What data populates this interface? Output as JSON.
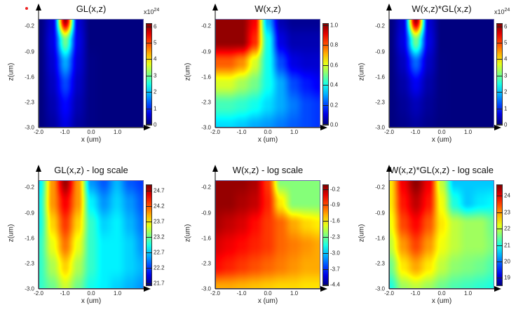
{
  "chart_data": [
    {
      "type": "heatmap",
      "title": "GL(x,z)",
      "xlabel": "x (um)",
      "ylabel": "z(um)",
      "xlim": [
        -2,
        2
      ],
      "ylim": [
        -3,
        0
      ],
      "xticks": [
        "-2.0",
        "-1.0",
        "0.0",
        "1.0"
      ],
      "yticks": [
        "-0.2",
        "-0.9",
        "-1.6",
        "-2.3",
        "-3.0"
      ],
      "multiplier": "x10",
      "multiplier_exp": "24",
      "clim": [
        0,
        6.2
      ],
      "cbticks": [
        "6",
        "5",
        "4",
        "3",
        "2",
        "1",
        "0"
      ],
      "grid_x": [
        -2,
        -1.5,
        -1,
        -0.5,
        0,
        0.5,
        1,
        1.5,
        2
      ],
      "grid_z": [
        0,
        -0.6,
        -1.2,
        -1.8,
        -2.4,
        -3.0
      ],
      "values": [
        [
          0,
          0.5,
          6,
          0.5,
          0,
          0,
          0,
          0,
          0
        ],
        [
          0,
          0.6,
          3,
          0.6,
          0,
          0,
          0,
          0,
          0
        ],
        [
          0,
          0.5,
          1.8,
          0.5,
          0.05,
          0,
          0,
          0,
          0
        ],
        [
          0,
          0.4,
          1.2,
          0.4,
          0.05,
          0,
          0,
          0,
          0
        ],
        [
          0,
          0.3,
          0.8,
          0.3,
          0.05,
          0,
          0,
          0,
          0
        ],
        [
          0,
          0.2,
          0.6,
          0.2,
          0.05,
          0,
          0,
          0,
          0
        ]
      ]
    },
    {
      "type": "heatmap",
      "title": "W(x,z)",
      "xlabel": "x (um)",
      "ylabel": "z(um)",
      "xlim": [
        -2,
        2
      ],
      "ylim": [
        -3,
        0
      ],
      "xticks": [
        "-2.0",
        "-1.0",
        "0.0",
        "1.0"
      ],
      "yticks": [
        "-0.2",
        "-0.9",
        "-1.6",
        "-2.3",
        "-3.0"
      ],
      "clim": [
        0,
        1.02
      ],
      "cbticks": [
        "1.0",
        "0.8",
        "0.6",
        "0.4",
        "0.2",
        "0.0"
      ],
      "grid_x": [
        -2,
        -1.5,
        -1,
        -0.5,
        0,
        0.5,
        1,
        1.5,
        2
      ],
      "grid_z": [
        0,
        -0.6,
        -1.2,
        -1.8,
        -2.4,
        -3.0
      ],
      "values": [
        [
          1,
          1,
          1,
          0.9,
          0.3,
          0.05,
          0.02,
          0.02,
          0.02
        ],
        [
          1,
          1,
          1,
          0.85,
          0.4,
          0.1,
          0.05,
          0.05,
          0.05
        ],
        [
          0.8,
          0.8,
          0.75,
          0.6,
          0.4,
          0.2,
          0.1,
          0.08,
          0.08
        ],
        [
          0.6,
          0.6,
          0.55,
          0.5,
          0.4,
          0.3,
          0.2,
          0.15,
          0.12
        ],
        [
          0.45,
          0.45,
          0.43,
          0.4,
          0.35,
          0.3,
          0.25,
          0.2,
          0.18
        ],
        [
          0.35,
          0.35,
          0.33,
          0.3,
          0.28,
          0.25,
          0.22,
          0.2,
          0.18
        ]
      ]
    },
    {
      "type": "heatmap",
      "title": "W(x,z)*GL(x,z)",
      "xlabel": "x (um)",
      "ylabel": "z(um)",
      "xlim": [
        -2,
        2
      ],
      "ylim": [
        -3,
        0
      ],
      "xticks": [
        "-2.0",
        "-1.0",
        "0.0",
        "1.0"
      ],
      "yticks": [
        "-0.2",
        "-0.9",
        "-1.6",
        "-2.3",
        "-3.0"
      ],
      "multiplier": "x10",
      "multiplier_exp": "24",
      "clim": [
        0,
        6.2
      ],
      "cbticks": [
        "6",
        "5",
        "4",
        "3",
        "2",
        "1",
        "0"
      ],
      "grid_x": [
        -2,
        -1.5,
        -1,
        -0.5,
        0,
        0.5,
        1,
        1.5,
        2
      ],
      "grid_z": [
        0,
        -0.6,
        -1.2,
        -1.8,
        -2.4,
        -3.0
      ],
      "values": [
        [
          0,
          0.5,
          6,
          0.5,
          0,
          0,
          0,
          0,
          0
        ],
        [
          0,
          0.6,
          3,
          0.6,
          0,
          0,
          0,
          0,
          0
        ],
        [
          0,
          0.4,
          1.4,
          0.4,
          0.02,
          0,
          0,
          0,
          0
        ],
        [
          0,
          0.25,
          0.7,
          0.25,
          0.02,
          0,
          0,
          0,
          0
        ],
        [
          0,
          0.15,
          0.35,
          0.15,
          0.02,
          0,
          0,
          0,
          0
        ],
        [
          0,
          0.08,
          0.2,
          0.08,
          0.01,
          0,
          0,
          0,
          0
        ]
      ]
    },
    {
      "type": "heatmap",
      "title": "GL(x,z) - log scale",
      "xlabel": "x (um)",
      "ylabel": "z(um)",
      "xlim": [
        -2,
        2
      ],
      "ylim": [
        -3,
        0
      ],
      "xticks": [
        "-2.0",
        "-1.0",
        "0.0",
        "1.0"
      ],
      "yticks": [
        "-0.2",
        "-0.9",
        "-1.6",
        "-2.3",
        "-3.0"
      ],
      "clim": [
        21.6,
        24.9
      ],
      "cbticks": [
        "24.7",
        "24.2",
        "23.7",
        "23.2",
        "22.7",
        "22.2",
        "21.7"
      ],
      "grid_x": [
        -2,
        -1.5,
        -1,
        -0.5,
        0,
        0.5,
        1,
        1.5,
        2
      ],
      "grid_z": [
        0,
        -0.6,
        -1.2,
        -1.8,
        -2.4,
        -3.0
      ],
      "values": [
        [
          22.8,
          24.0,
          24.8,
          24.0,
          22.5,
          22.3,
          22.6,
          22.3,
          22.2
        ],
        [
          22.9,
          24.0,
          24.5,
          24.0,
          22.8,
          22.5,
          22.7,
          22.5,
          22.3
        ],
        [
          22.9,
          23.8,
          24.3,
          23.8,
          23.0,
          22.7,
          22.8,
          22.6,
          22.4
        ],
        [
          23.0,
          23.6,
          24.1,
          23.6,
          23.0,
          22.8,
          22.8,
          22.7,
          22.5
        ],
        [
          23.0,
          23.4,
          23.8,
          23.4,
          23.0,
          22.8,
          22.8,
          22.7,
          22.6
        ],
        [
          23.0,
          23.2,
          23.5,
          23.2,
          22.9,
          22.8,
          22.7,
          22.6,
          22.5
        ]
      ]
    },
    {
      "type": "heatmap",
      "title": "W(x,z) - log scale",
      "xlabel": "x (um)",
      "ylabel": "z(um)",
      "xlim": [
        -2,
        2
      ],
      "ylim": [
        -3,
        0
      ],
      "xticks": [
        "-2.0",
        "-1.0",
        "0.0",
        "1.0"
      ],
      "yticks": [
        "-0.2",
        "-0.9",
        "-1.6",
        "-2.3",
        "-3.0"
      ],
      "clim": [
        -4.45,
        0
      ],
      "cbticks": [
        "-0.2",
        "-0.9",
        "-1.6",
        "-2.3",
        "-3.0",
        "-3.7",
        "-4.4"
      ],
      "grid_x": [
        -2,
        -1.5,
        -1,
        -0.5,
        0,
        0.5,
        1,
        1.5,
        2
      ],
      "grid_z": [
        0,
        -0.6,
        -1.2,
        -1.8,
        -2.4,
        -3.0
      ],
      "values": [
        [
          -0.1,
          -0.1,
          -0.1,
          -0.2,
          -0.8,
          -2.2,
          -2.2,
          -2.2,
          -2.2
        ],
        [
          -0.1,
          -0.1,
          -0.2,
          -0.3,
          -0.7,
          -1.6,
          -2.2,
          -2.2,
          -2.2
        ],
        [
          -0.2,
          -0.3,
          -0.4,
          -0.6,
          -0.8,
          -1.0,
          -1.3,
          -1.5,
          -1.6
        ],
        [
          -0.4,
          -0.5,
          -0.6,
          -0.7,
          -0.8,
          -1.0,
          -1.1,
          -1.2,
          -1.3
        ],
        [
          -0.6,
          -0.7,
          -0.8,
          -0.9,
          -1.0,
          -1.1,
          -1.2,
          -1.3,
          -1.3
        ],
        [
          -1.3,
          -1.3,
          -1.35,
          -1.4,
          -1.45,
          -1.5,
          -1.5,
          -1.55,
          -1.55
        ]
      ]
    },
    {
      "type": "heatmap",
      "title": "W(x,z)*GL(x,z) - log scale",
      "xlabel": "x (um)",
      "ylabel": "z(um)",
      "xlim": [
        -2,
        2
      ],
      "ylim": [
        -3,
        0
      ],
      "xticks": [
        "-2.0",
        "-1.0",
        "0.0",
        "1.0"
      ],
      "yticks": [
        "-0.2",
        "-0.9",
        "-1.6",
        "-2.3",
        "-3.0"
      ],
      "clim": [
        18.5,
        24.7
      ],
      "cbticks": [
        "24",
        "23",
        "22",
        "21",
        "20",
        "19"
      ],
      "grid_x": [
        -2,
        -1.5,
        -1,
        -0.5,
        0,
        0.5,
        1,
        1.5,
        2
      ],
      "grid_z": [
        0,
        -0.6,
        -1.2,
        -1.8,
        -2.4,
        -3.0
      ],
      "values": [
        [
          22.5,
          24.0,
          24.6,
          24.0,
          22.0,
          20.5,
          20.5,
          20.5,
          20.5
        ],
        [
          22.5,
          23.8,
          24.3,
          23.8,
          22.3,
          21.0,
          20.5,
          20.7,
          20.8
        ],
        [
          22.3,
          23.5,
          23.9,
          23.4,
          22.5,
          22.0,
          21.8,
          21.8,
          21.5
        ],
        [
          22.0,
          23.0,
          23.5,
          23.0,
          22.3,
          22.0,
          21.8,
          21.8,
          21.6
        ],
        [
          21.5,
          22.5,
          22.9,
          22.5,
          22.0,
          21.7,
          21.6,
          21.5,
          21.3
        ],
        [
          21.0,
          21.8,
          22.0,
          21.8,
          21.5,
          21.3,
          21.2,
          21.1,
          21.0
        ]
      ]
    }
  ]
}
